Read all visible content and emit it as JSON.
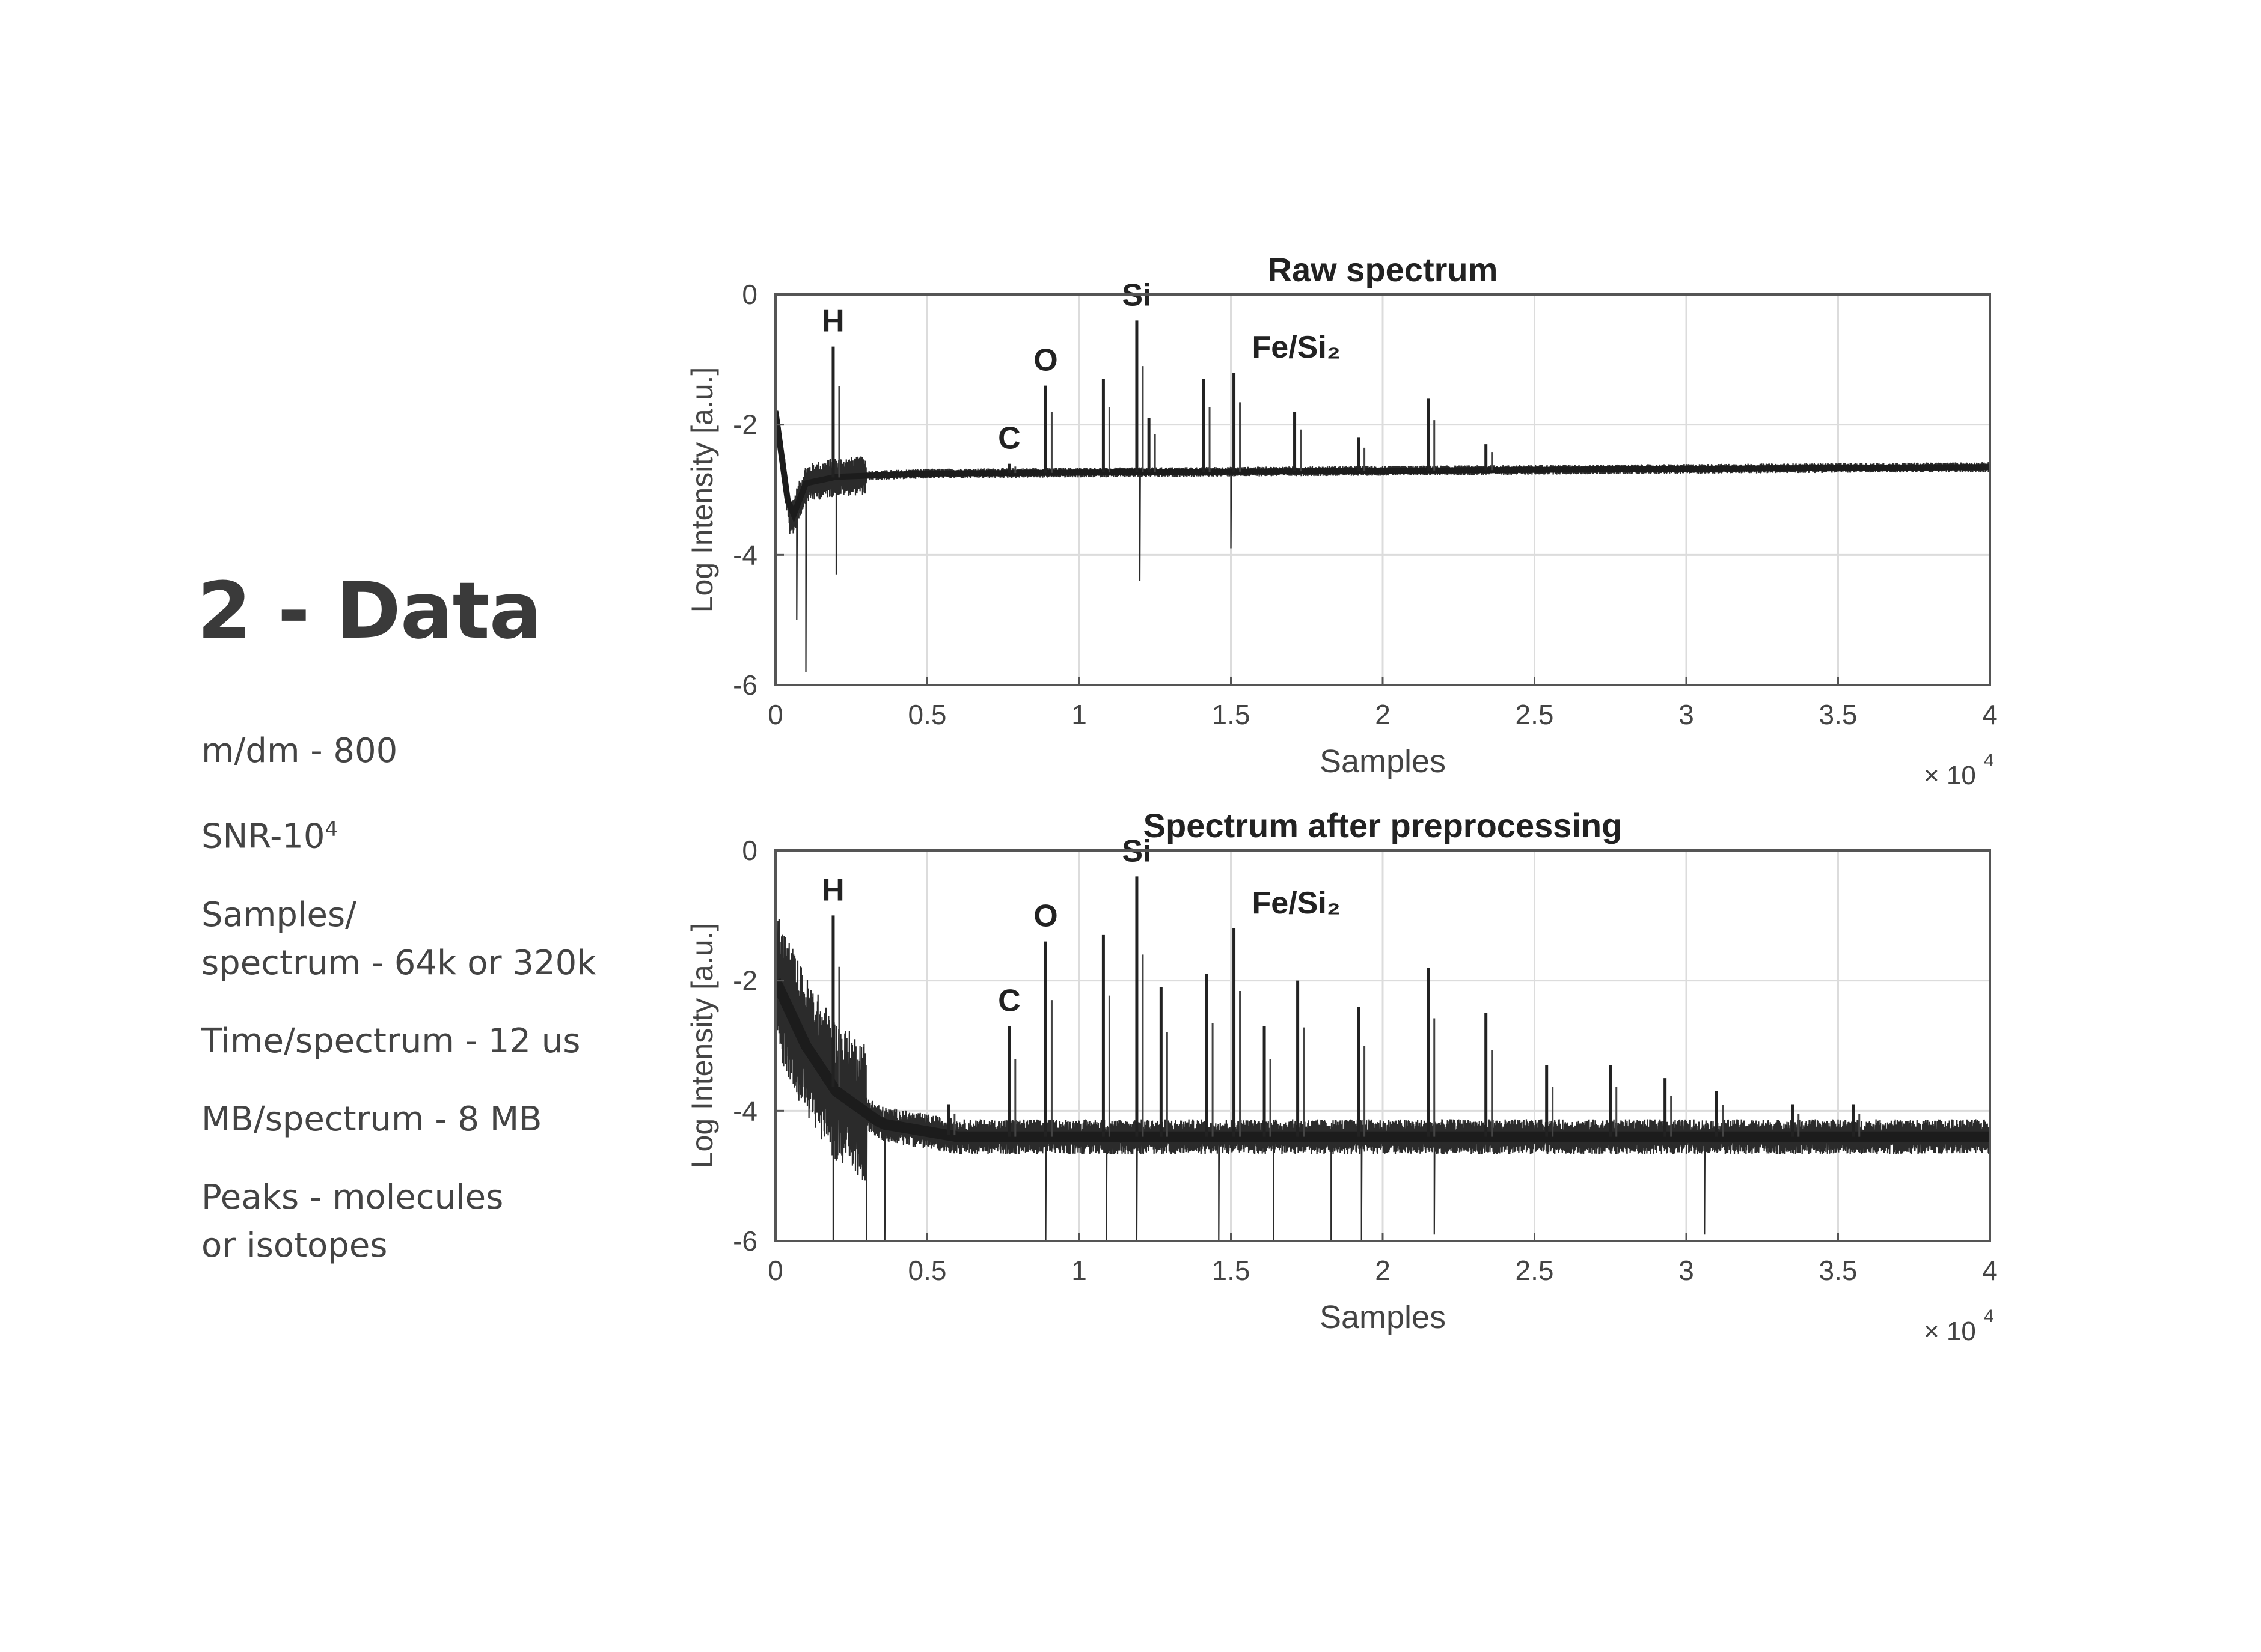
{
  "slide": {
    "title": "2 - Data",
    "bullets": [
      {
        "line1": "m/dm - 800",
        "line2": ""
      },
      {
        "line1": "SNR-10",
        "sup": "4",
        "line2": ""
      },
      {
        "line1": "Samples/",
        "line2": "spectrum - 64k or 320k"
      },
      {
        "line1": "Time/spectrum - 12 us",
        "line2": ""
      },
      {
        "line1": "MB/spectrum - 8 MB",
        "line2": ""
      },
      {
        "line1": "Peaks - molecules",
        "line2": "or isotopes"
      }
    ]
  },
  "chart_data": [
    {
      "type": "line",
      "title": "Raw spectrum",
      "xlabel": "Samples",
      "ylabel": "Log Intensity [a.u.]",
      "x_multiplier_label": "× 10",
      "x_multiplier_exp": "4",
      "xlim": [
        0,
        4
      ],
      "ylim": [
        -6,
        0
      ],
      "xticks": [
        "0",
        "0.5",
        "1",
        "1.5",
        "2",
        "2.5",
        "3",
        "3.5",
        "4"
      ],
      "yticks": [
        "0",
        "-2",
        "-4",
        "-6"
      ],
      "grid": true,
      "baseline": -2.7,
      "noise_amplitude": 0.05,
      "decay": [
        {
          "x": 0.0,
          "y": -1.8
        },
        {
          "x": 0.05,
          "y": -3.5
        },
        {
          "x": 0.1,
          "y": -2.9
        },
        {
          "x": 0.2,
          "y": -2.8
        },
        {
          "x": 0.5,
          "y": -2.75
        },
        {
          "x": 4.0,
          "y": -2.65
        }
      ],
      "dips": [
        {
          "x": 0.07,
          "y": -5.0
        },
        {
          "x": 0.1,
          "y": -5.8
        },
        {
          "x": 0.2,
          "y": -4.3
        },
        {
          "x": 1.2,
          "y": -4.4
        },
        {
          "x": 1.5,
          "y": -3.9
        }
      ],
      "peaks": [
        {
          "x": 0.19,
          "y": -0.8,
          "label": "H"
        },
        {
          "x": 0.77,
          "y": -2.6,
          "label": "C"
        },
        {
          "x": 0.89,
          "y": -1.4,
          "label": "O"
        },
        {
          "x": 1.08,
          "y": -1.3,
          "label": ""
        },
        {
          "x": 1.19,
          "y": -0.4,
          "label": "Si"
        },
        {
          "x": 1.23,
          "y": -1.9,
          "label": ""
        },
        {
          "x": 1.41,
          "y": -1.3,
          "label": ""
        },
        {
          "x": 1.51,
          "y": -1.2,
          "label": "Fe/Si₂"
        },
        {
          "x": 1.71,
          "y": -1.8,
          "label": ""
        },
        {
          "x": 1.92,
          "y": -2.2,
          "label": ""
        },
        {
          "x": 2.15,
          "y": -1.6,
          "label": ""
        },
        {
          "x": 2.34,
          "y": -2.3,
          "label": ""
        }
      ]
    },
    {
      "type": "line",
      "title": "Spectrum after preprocessing",
      "xlabel": "Samples",
      "ylabel": "Log Intensity [a.u.]",
      "x_multiplier_label": "× 10",
      "x_multiplier_exp": "4",
      "xlim": [
        0,
        4
      ],
      "ylim": [
        -6,
        0
      ],
      "xticks": [
        "0",
        "0.5",
        "1",
        "1.5",
        "2",
        "2.5",
        "3",
        "3.5",
        "4"
      ],
      "yticks": [
        "0",
        "-2",
        "-4",
        "-6"
      ],
      "grid": true,
      "baseline": -4.4,
      "noise_amplitude": 0.18,
      "decay": [
        {
          "x": 0.0,
          "y": -2.0
        },
        {
          "x": 0.1,
          "y": -3.0
        },
        {
          "x": 0.2,
          "y": -3.7
        },
        {
          "x": 0.35,
          "y": -4.2
        },
        {
          "x": 0.6,
          "y": -4.4
        },
        {
          "x": 4.0,
          "y": -4.4
        }
      ],
      "dips": [
        {
          "x": 0.19,
          "y": -6.3
        },
        {
          "x": 0.3,
          "y": -6.9
        },
        {
          "x": 0.36,
          "y": -7.1
        },
        {
          "x": 0.89,
          "y": -7.3
        },
        {
          "x": 1.09,
          "y": -7.0
        },
        {
          "x": 1.19,
          "y": -6.6
        },
        {
          "x": 1.46,
          "y": -6.3
        },
        {
          "x": 1.64,
          "y": -7.6
        },
        {
          "x": 1.83,
          "y": -7.4
        },
        {
          "x": 1.93,
          "y": -6.5
        },
        {
          "x": 2.17,
          "y": -5.9
        },
        {
          "x": 3.06,
          "y": -5.9
        }
      ],
      "peaks": [
        {
          "x": 0.19,
          "y": -1.0,
          "label": "H"
        },
        {
          "x": 0.57,
          "y": -3.9,
          "label": ""
        },
        {
          "x": 0.77,
          "y": -2.7,
          "label": "C"
        },
        {
          "x": 0.89,
          "y": -1.4,
          "label": "O"
        },
        {
          "x": 1.08,
          "y": -1.3,
          "label": ""
        },
        {
          "x": 1.19,
          "y": -0.4,
          "label": "Si"
        },
        {
          "x": 1.27,
          "y": -2.1,
          "label": ""
        },
        {
          "x": 1.42,
          "y": -1.9,
          "label": ""
        },
        {
          "x": 1.51,
          "y": -1.2,
          "label": "Fe/Si₂"
        },
        {
          "x": 1.61,
          "y": -2.7,
          "label": ""
        },
        {
          "x": 1.72,
          "y": -2.0,
          "label": ""
        },
        {
          "x": 1.92,
          "y": -2.4,
          "label": ""
        },
        {
          "x": 2.15,
          "y": -1.8,
          "label": ""
        },
        {
          "x": 2.34,
          "y": -2.5,
          "label": ""
        },
        {
          "x": 2.54,
          "y": -3.3,
          "label": ""
        },
        {
          "x": 2.75,
          "y": -3.3,
          "label": ""
        },
        {
          "x": 2.93,
          "y": -3.5,
          "label": ""
        },
        {
          "x": 3.1,
          "y": -3.7,
          "label": ""
        },
        {
          "x": 3.35,
          "y": -3.9,
          "label": ""
        },
        {
          "x": 3.55,
          "y": -3.9,
          "label": ""
        }
      ]
    }
  ]
}
